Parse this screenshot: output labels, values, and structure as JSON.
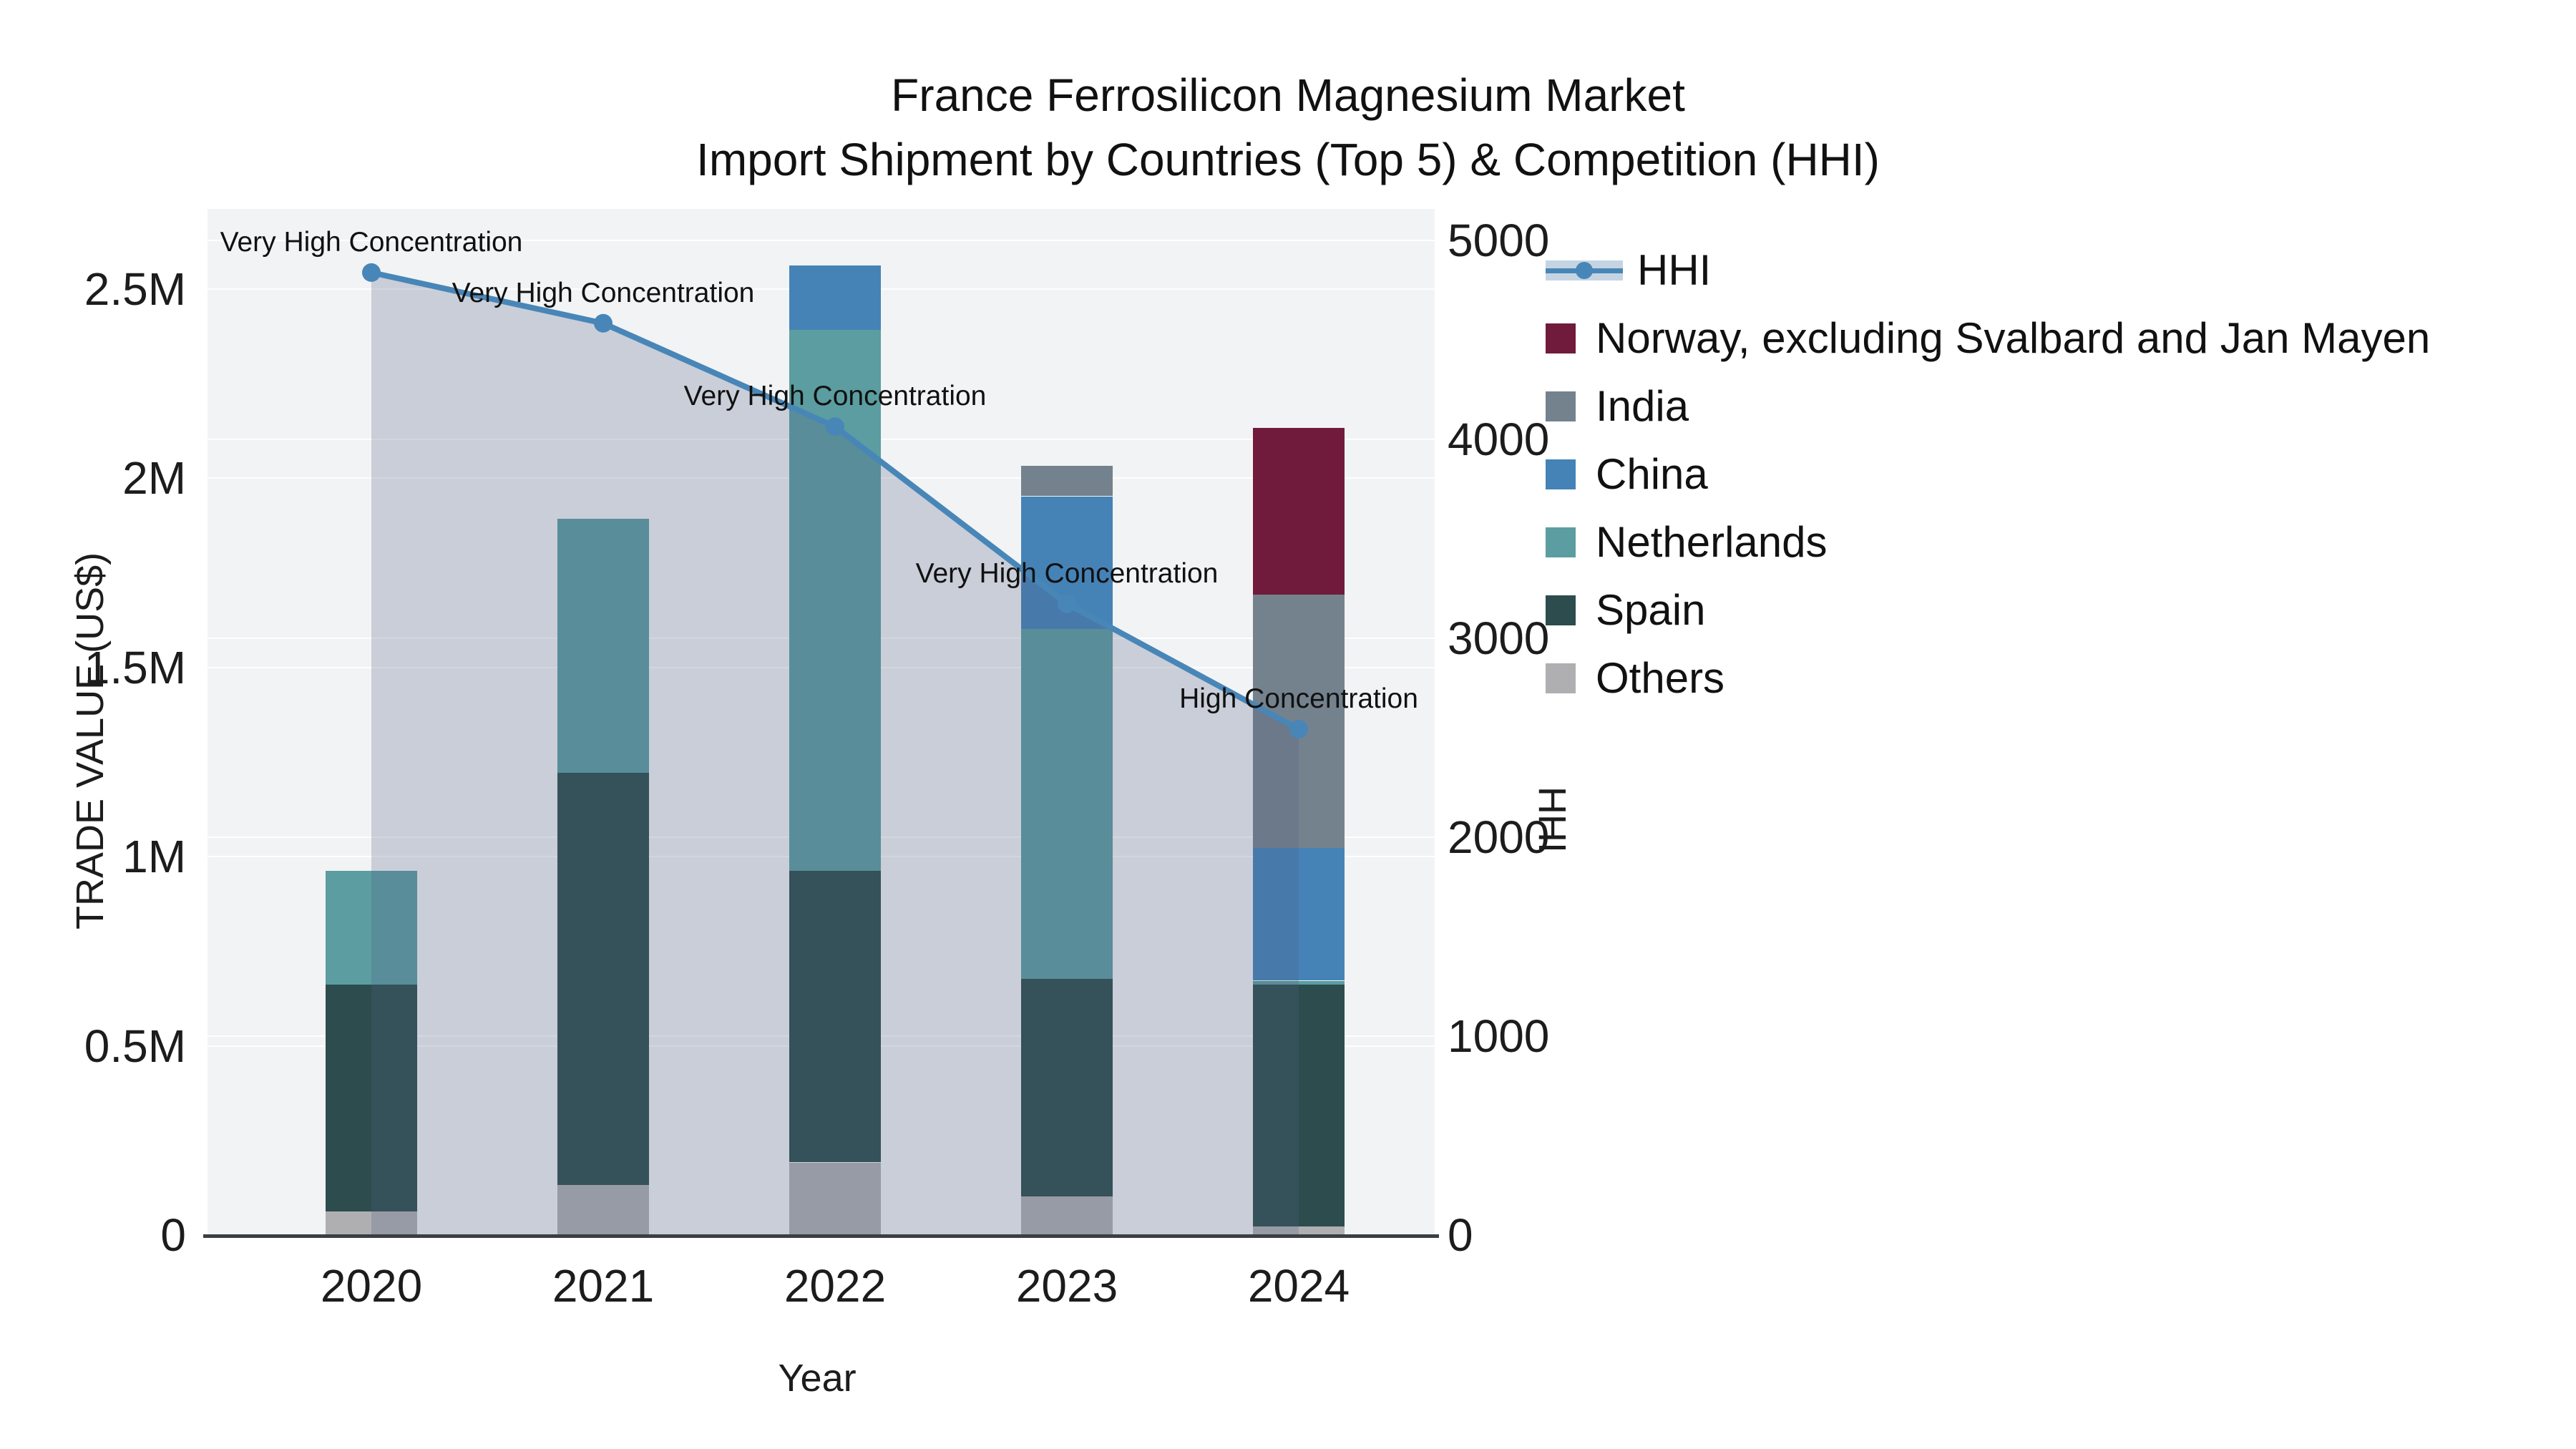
{
  "title_line1": "France Ferrosilicon Magnesium Market",
  "title_line2": "Import Shipment by Countries (Top 5) & Competition (HHI)",
  "x_axis_title": "Year",
  "y_axis_title": "TRADE VALUE (US$)",
  "y2_axis_title": "HHI",
  "colors": {
    "norway": "#701b3b",
    "india": "#74828e",
    "china": "#4583b7",
    "netherlands": "#5b9da0",
    "spain": "#2d4c4d",
    "others": "#afafb1",
    "hhi_line": "#4886b8",
    "hhi_fill": "rgba(78,95,132,0.25)",
    "plot_bg": "#f2f3f4",
    "axis_line": "#3a3f44"
  },
  "left_ticks": [
    {
      "value": 0,
      "label": "0"
    },
    {
      "value": 0.5,
      "label": "0.5M"
    },
    {
      "value": 1.0,
      "label": "1M"
    },
    {
      "value": 1.5,
      "label": "1.5M"
    },
    {
      "value": 2.0,
      "label": "2M"
    },
    {
      "value": 2.5,
      "label": "2.5M"
    }
  ],
  "right_ticks": [
    {
      "value": 0,
      "label": "0"
    },
    {
      "value": 1000,
      "label": "1000"
    },
    {
      "value": 2000,
      "label": "2000"
    },
    {
      "value": 3000,
      "label": "3000"
    },
    {
      "value": 4000,
      "label": "4000"
    },
    {
      "value": 5000,
      "label": "5000"
    }
  ],
  "legend": [
    {
      "label": "HHI",
      "type": "line"
    },
    {
      "label": "Norway, excluding Svalbard and Jan Mayen",
      "color": "#701b3b"
    },
    {
      "label": "India",
      "color": "#74828e"
    },
    {
      "label": "China",
      "color": "#4583b7"
    },
    {
      "label": "Netherlands",
      "color": "#5b9da0"
    },
    {
      "label": "Spain",
      "color": "#2d4c4d"
    },
    {
      "label": "Others",
      "color": "#afafb1"
    }
  ],
  "chart_data": {
    "type": "bar",
    "subtype": "stacked-with-line",
    "title": "France Ferrosilicon Magnesium Market",
    "subtitle": "Import Shipment by Countries (Top 5) & Competition (HHI)",
    "xlabel": "Year",
    "ylabel": "TRADE VALUE (US$)",
    "y2label": "HHI",
    "ylim": [
      0,
      2710000
    ],
    "y2lim": [
      0,
      5000
    ],
    "grid": true,
    "legend_position": "right",
    "categories": [
      "2020",
      "2021",
      "2022",
      "2023",
      "2024"
    ],
    "stack_order_bottom_to_top": [
      "Others",
      "Spain",
      "Netherlands",
      "China",
      "India",
      "Norway, excluding Svalbard and Jan Mayen"
    ],
    "series": [
      {
        "name": "Others",
        "color_key": "others",
        "values": [
          60000,
          130000,
          190000,
          100000,
          20000
        ]
      },
      {
        "name": "Spain",
        "color_key": "spain",
        "values": [
          600000,
          1090000,
          770000,
          575000,
          640000
        ]
      },
      {
        "name": "Netherlands",
        "color_key": "netherlands",
        "values": [
          300000,
          670000,
          1430000,
          925000,
          10000
        ]
      },
      {
        "name": "China",
        "color_key": "china",
        "values": [
          0,
          0,
          170000,
          350000,
          350000
        ]
      },
      {
        "name": "India",
        "color_key": "india",
        "values": [
          0,
          0,
          0,
          80000,
          670000
        ]
      },
      {
        "name": "Norway, excluding Svalbard and Jan Mayen",
        "color_key": "norway",
        "values": [
          0,
          0,
          0,
          0,
          440000
        ]
      }
    ],
    "bar_totals": [
      960000,
      1890000,
      2560000,
      2030000,
      2130000
    ],
    "line_series": {
      "name": "HHI",
      "axis": "y2",
      "values": [
        4835,
        4580,
        4060,
        3170,
        2540
      ],
      "fill_to_zero": true
    },
    "annotations": [
      {
        "category": "2020",
        "text": "Very High Concentration"
      },
      {
        "category": "2021",
        "text": "Very High Concentration"
      },
      {
        "category": "2022",
        "text": "Very High Concentration"
      },
      {
        "category": "2023",
        "text": "Very High Concentration"
      },
      {
        "category": "2024",
        "text": "High Concentration"
      }
    ]
  }
}
